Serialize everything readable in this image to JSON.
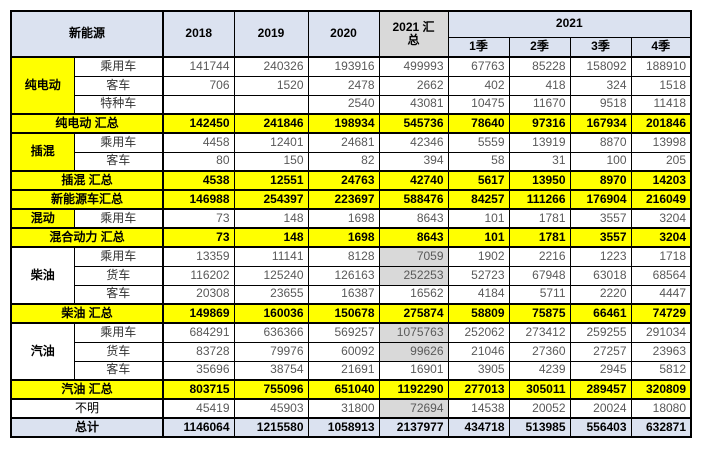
{
  "colors": {
    "header_bg": "#dbe2f0",
    "summary_bg": "#ffff00",
    "gray_bg": "#d9d9d9",
    "total_bg": "#dbe2f0",
    "border": "#000000",
    "data_text": "#595959"
  },
  "chart_data": {
    "type": "table",
    "header": {
      "group_label": "新能源",
      "year_columns": [
        "2018",
        "2019",
        "2020"
      ],
      "summary_column": "2021 汇总",
      "year_group_label": "2021",
      "quarter_columns": [
        "1季",
        "2季",
        "3季",
        "4季"
      ]
    },
    "rows": [
      {
        "kind": "group",
        "group": "纯电动",
        "group_rows": 3,
        "group_color": "yellow",
        "sub": "乘用车",
        "values": [
          "141744",
          "240326",
          "193916",
          "499993",
          "67763",
          "85228",
          "158092",
          "188910"
        ]
      },
      {
        "kind": "sub",
        "sub": "客车",
        "values": [
          "706",
          "1520",
          "2478",
          "2662",
          "402",
          "418",
          "324",
          "1518"
        ]
      },
      {
        "kind": "sub",
        "sub": "特种车",
        "values": [
          "",
          "",
          "2540",
          "43081",
          "10475",
          "11670",
          "9518",
          "11418"
        ]
      },
      {
        "kind": "summary",
        "label": "纯电动 汇总",
        "values": [
          "142450",
          "241846",
          "198934",
          "545736",
          "78640",
          "97316",
          "167934",
          "201846"
        ]
      },
      {
        "kind": "group",
        "group": "插混",
        "group_rows": 2,
        "group_color": "yellow",
        "sub": "乘用车",
        "values": [
          "4458",
          "12401",
          "24681",
          "42346",
          "5559",
          "13919",
          "8870",
          "13998"
        ]
      },
      {
        "kind": "sub",
        "sub": "客车",
        "values": [
          "80",
          "150",
          "82",
          "394",
          "58",
          "31",
          "100",
          "205"
        ]
      },
      {
        "kind": "summary",
        "label": "插混 汇总",
        "values": [
          "4538",
          "12551",
          "24763",
          "42740",
          "5617",
          "13950",
          "8970",
          "14203"
        ]
      },
      {
        "kind": "summary",
        "label": "新能源车汇总",
        "values": [
          "146988",
          "254397",
          "223697",
          "588476",
          "84257",
          "111266",
          "176904",
          "216049"
        ]
      },
      {
        "kind": "group",
        "group": "混动",
        "group_rows": 1,
        "group_color": "yellow",
        "sub": "乘用车",
        "values": [
          "73",
          "148",
          "1698",
          "8643",
          "101",
          "1781",
          "3557",
          "3204"
        ]
      },
      {
        "kind": "summary",
        "label": "混合动力 汇总",
        "values": [
          "73",
          "148",
          "1698",
          "8643",
          "101",
          "1781",
          "3557",
          "3204"
        ]
      },
      {
        "kind": "group",
        "group": "柴油",
        "group_rows": 3,
        "group_color": "white",
        "sub": "乘用车",
        "values": [
          "13359",
          "11141",
          "8128",
          "7059",
          "1902",
          "2216",
          "1223",
          "1718"
        ],
        "gray_cols": [
          3
        ]
      },
      {
        "kind": "sub",
        "sub": "货车",
        "values": [
          "116202",
          "125240",
          "126163",
          "252253",
          "52723",
          "67948",
          "63018",
          "68564"
        ],
        "gray_cols": [
          3
        ]
      },
      {
        "kind": "sub",
        "sub": "客车",
        "values": [
          "20308",
          "23655",
          "16387",
          "16562",
          "4184",
          "5711",
          "2220",
          "4447"
        ]
      },
      {
        "kind": "summary",
        "label": "柴油 汇总",
        "values": [
          "149869",
          "160036",
          "150678",
          "275874",
          "58809",
          "75875",
          "66461",
          "74729"
        ]
      },
      {
        "kind": "group",
        "group": "汽油",
        "group_rows": 3,
        "group_color": "white",
        "sub": "乘用车",
        "values": [
          "684291",
          "636366",
          "569257",
          "1075763",
          "252062",
          "273412",
          "259255",
          "291034"
        ],
        "gray_cols": [
          3
        ]
      },
      {
        "kind": "sub",
        "sub": "货车",
        "values": [
          "83728",
          "79976",
          "60092",
          "99626",
          "21046",
          "27360",
          "27257",
          "23963"
        ],
        "gray_cols": [
          3
        ]
      },
      {
        "kind": "sub",
        "sub": "客车",
        "values": [
          "35696",
          "38754",
          "21691",
          "16901",
          "3905",
          "4239",
          "2945",
          "5812"
        ]
      },
      {
        "kind": "summary",
        "label": "汽油 汇总",
        "values": [
          "803715",
          "755096",
          "651040",
          "1192290",
          "277013",
          "305011",
          "289457",
          "320809"
        ]
      },
      {
        "kind": "plain",
        "label": "不明",
        "values": [
          "45419",
          "45903",
          "31800",
          "72694",
          "14538",
          "20052",
          "20024",
          "18080"
        ],
        "gray_cols": [
          3
        ]
      },
      {
        "kind": "total",
        "label": "总计",
        "values": [
          "1146064",
          "1215580",
          "1058913",
          "2137977",
          "434718",
          "513985",
          "556403",
          "632871"
        ]
      }
    ]
  }
}
